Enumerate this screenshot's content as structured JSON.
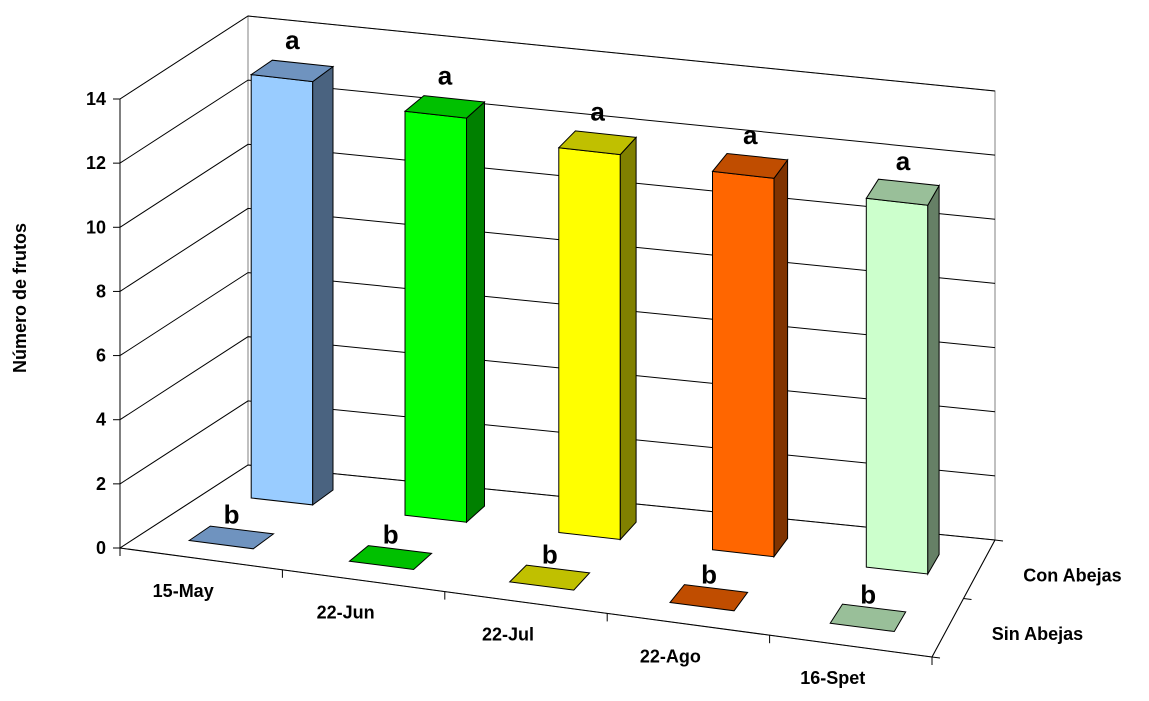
{
  "chart_data": {
    "type": "bar",
    "subtype": "3d-column",
    "ylabel": "Número de frutos",
    "ylim": [
      0,
      14
    ],
    "yticks": [
      "0",
      "2",
      "4",
      "6",
      "8",
      "10",
      "12",
      "14"
    ],
    "grid": true,
    "categories": [
      "15-May",
      "22-Jun",
      "22-Jul",
      "22-Ago",
      "16-Spet"
    ],
    "series": [
      {
        "name": "Sin Abejas",
        "values": [
          0,
          0,
          0,
          0,
          0
        ],
        "labels": [
          "b",
          "b",
          "b",
          "b",
          "b"
        ]
      },
      {
        "name": "Con Abejas",
        "values": [
          13.2,
          12.6,
          12.0,
          11.8,
          11.5
        ],
        "labels": [
          "a",
          "a",
          "a",
          "a",
          "a"
        ]
      }
    ],
    "colors": {
      "front": [
        "#99CCFF",
        "#00FF00",
        "#FFFF00",
        "#FF6600",
        "#CCFFCC"
      ],
      "side": [
        "#4A6380",
        "#008000",
        "#808000",
        "#803300",
        "#668066"
      ],
      "top": [
        "#6F93BF",
        "#00C000",
        "#C0C000",
        "#C04D00",
        "#99BF99"
      ]
    }
  }
}
